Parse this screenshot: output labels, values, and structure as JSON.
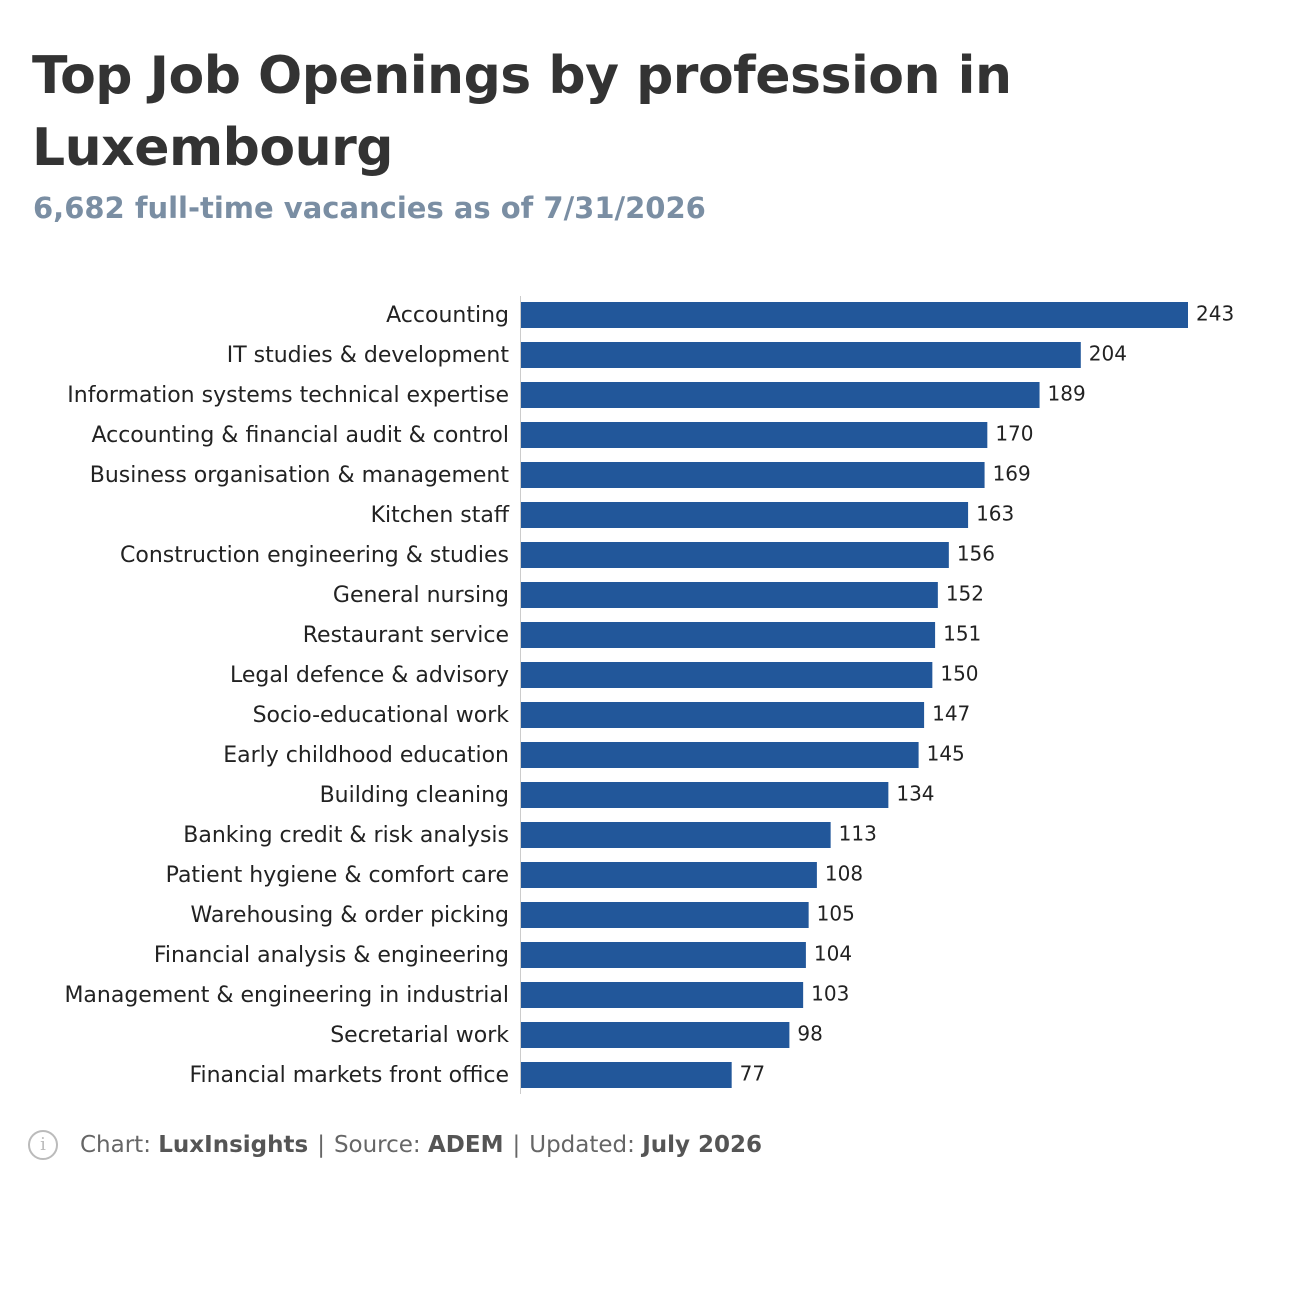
{
  "header": {
    "title": "Top Job Openings by profession in Luxembourg",
    "subtitle": "6,682 full-time vacancies as of 7/31/2026"
  },
  "footer": {
    "chart_label": "Chart:",
    "chart_value": "LuxInsights",
    "source_label": "Source:",
    "source_value": "ADEM",
    "updated_label": "Updated:",
    "updated_value": "July 2026",
    "separator": "|",
    "icon": "info-icon"
  },
  "colors": {
    "bar": "#22579a",
    "label": "#222222",
    "axis": "#cccccc"
  },
  "chart_data": {
    "type": "bar",
    "orientation": "horizontal",
    "categories": [
      "Accounting",
      "IT studies & development",
      "Information systems technical expertise",
      "Accounting & financial audit & control",
      "Business organisation & management",
      "Kitchen staff",
      "Construction engineering & studies",
      "General nursing",
      "Restaurant service",
      "Legal defence & advisory",
      "Socio-educational work",
      "Early childhood education",
      "Building cleaning",
      "Banking credit & risk analysis",
      "Patient hygiene & comfort care",
      "Warehousing & order picking",
      "Financial analysis & engineering",
      "Management & engineering in industrial",
      "Secretarial work",
      "Financial markets front office"
    ],
    "values": [
      243,
      204,
      189,
      170,
      169,
      163,
      156,
      152,
      151,
      150,
      147,
      145,
      134,
      113,
      108,
      105,
      104,
      103,
      98,
      77
    ],
    "xlim": [
      0,
      243
    ],
    "grid": false,
    "legend": "none",
    "data_labels": true
  }
}
